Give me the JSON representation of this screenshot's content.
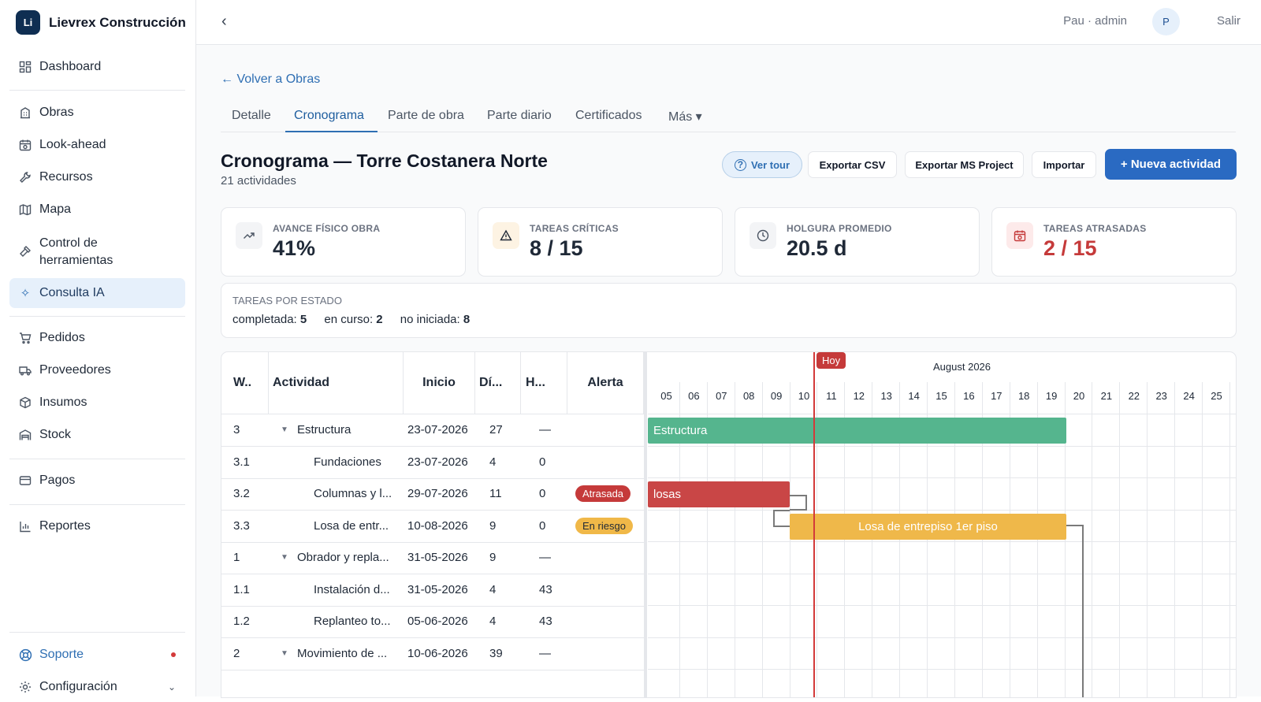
{
  "app": {
    "name": "Lievrex Construcción",
    "logo_text": "Li"
  },
  "sidebar": {
    "items": [
      {
        "label": "Dashboard",
        "icon": "dashboard-icon"
      },
      {
        "label": "Obras",
        "icon": "building-icon"
      },
      {
        "label": "Look-ahead",
        "icon": "calendar-icon"
      },
      {
        "label": "Recursos",
        "icon": "wrench-icon"
      },
      {
        "label": "Mapa",
        "icon": "map-icon"
      },
      {
        "label": "Control de herramientas",
        "icon": "hammer-icon"
      },
      {
        "label": "Consulta IA",
        "icon": "sparkle-icon"
      },
      {
        "label": "Pedidos",
        "icon": "cart-icon"
      },
      {
        "label": "Proveedores",
        "icon": "truck-icon"
      },
      {
        "label": "Insumos",
        "icon": "box-icon"
      },
      {
        "label": "Stock",
        "icon": "warehouse-icon"
      },
      {
        "label": "Pagos",
        "icon": "card-icon"
      },
      {
        "label": "Reportes",
        "icon": "chart-icon"
      }
    ],
    "support": "Soporte",
    "config": "Configuración"
  },
  "topbar": {
    "back": "‹",
    "user": "Pau · admin",
    "avatar": "P",
    "logout": "Salir"
  },
  "page": {
    "back_link": "← Volver a Obras",
    "tabs": [
      "Detalle",
      "Cronograma",
      "Parte de obra",
      "Parte diario",
      "Certificados",
      "Más ▾"
    ],
    "title": "Cronograma — Torre Costanera Norte",
    "subtitle": "21 actividades",
    "buttons": {
      "tour": "Ver tour",
      "csv": "Exportar CSV",
      "ms": "Exportar MS Project",
      "import": "Importar",
      "new": "+ Nueva actividad"
    }
  },
  "kpis": [
    {
      "label": "AVANCE FÍSICO OBRA",
      "value": "41%",
      "icon": "trend-icon"
    },
    {
      "label": "TAREAS CRÍTICAS",
      "value": "8 / 15",
      "icon": "warning-icon"
    },
    {
      "label": "HOLGURA PROMEDIO",
      "value": "20.5 d",
      "icon": "clock-icon"
    },
    {
      "label": "TAREAS ATRASADAS",
      "value": "2 / 15",
      "icon": "calendar-alert-icon"
    }
  ],
  "estado": {
    "label": "TAREAS POR ESTADO",
    "items": [
      {
        "name": "completada:",
        "count": "5"
      },
      {
        "name": "en curso:",
        "count": "2"
      },
      {
        "name": "no iniciada:",
        "count": "8"
      }
    ]
  },
  "table": {
    "headers": [
      "W..",
      "Actividad",
      "Inicio",
      "Dí...",
      "H...",
      "Alerta"
    ],
    "rows": [
      {
        "wbs": "3",
        "name": "Estructura",
        "start": "23-07-2026",
        "days": "27",
        "h": "—",
        "alert": "",
        "group": true
      },
      {
        "wbs": "3.1",
        "name": "Fundaciones",
        "start": "23-07-2026",
        "days": "4",
        "h": "0",
        "alert": "",
        "group": false
      },
      {
        "wbs": "3.2",
        "name": "Columnas y l...",
        "start": "29-07-2026",
        "days": "11",
        "h": "0",
        "alert": "Atrasada",
        "group": false
      },
      {
        "wbs": "3.3",
        "name": "Losa de entr...",
        "start": "10-08-2026",
        "days": "9",
        "h": "0",
        "alert": "En riesgo",
        "group": false
      },
      {
        "wbs": "1",
        "name": "Obrador y repla...",
        "start": "31-05-2026",
        "days": "9",
        "h": "—",
        "alert": "",
        "group": true
      },
      {
        "wbs": "1.1",
        "name": "Instalación d...",
        "start": "31-05-2026",
        "days": "4",
        "h": "43",
        "alert": "",
        "group": false
      },
      {
        "wbs": "1.2",
        "name": "Replanteo to...",
        "start": "05-06-2026",
        "days": "4",
        "h": "43",
        "alert": "",
        "group": false
      },
      {
        "wbs": "2",
        "name": "Movimiento de ...",
        "start": "10-06-2026",
        "days": "39",
        "h": "—",
        "alert": "",
        "group": true
      }
    ]
  },
  "gantt": {
    "month": "August 2026",
    "today_label": "Hoy",
    "days": [
      "05",
      "06",
      "07",
      "08",
      "09",
      "10",
      "11",
      "12",
      "13",
      "14",
      "15",
      "16",
      "17",
      "18",
      "19",
      "20",
      "21",
      "22",
      "23",
      "24",
      "25"
    ],
    "bars": [
      {
        "label": "Estructura",
        "color": "#55b58e",
        "row": 0
      },
      {
        "label": "losas",
        "color": "#c94646",
        "row": 2
      },
      {
        "label": "Losa de entrepiso 1er piso",
        "color": "#efb84a",
        "row": 3
      }
    ]
  }
}
